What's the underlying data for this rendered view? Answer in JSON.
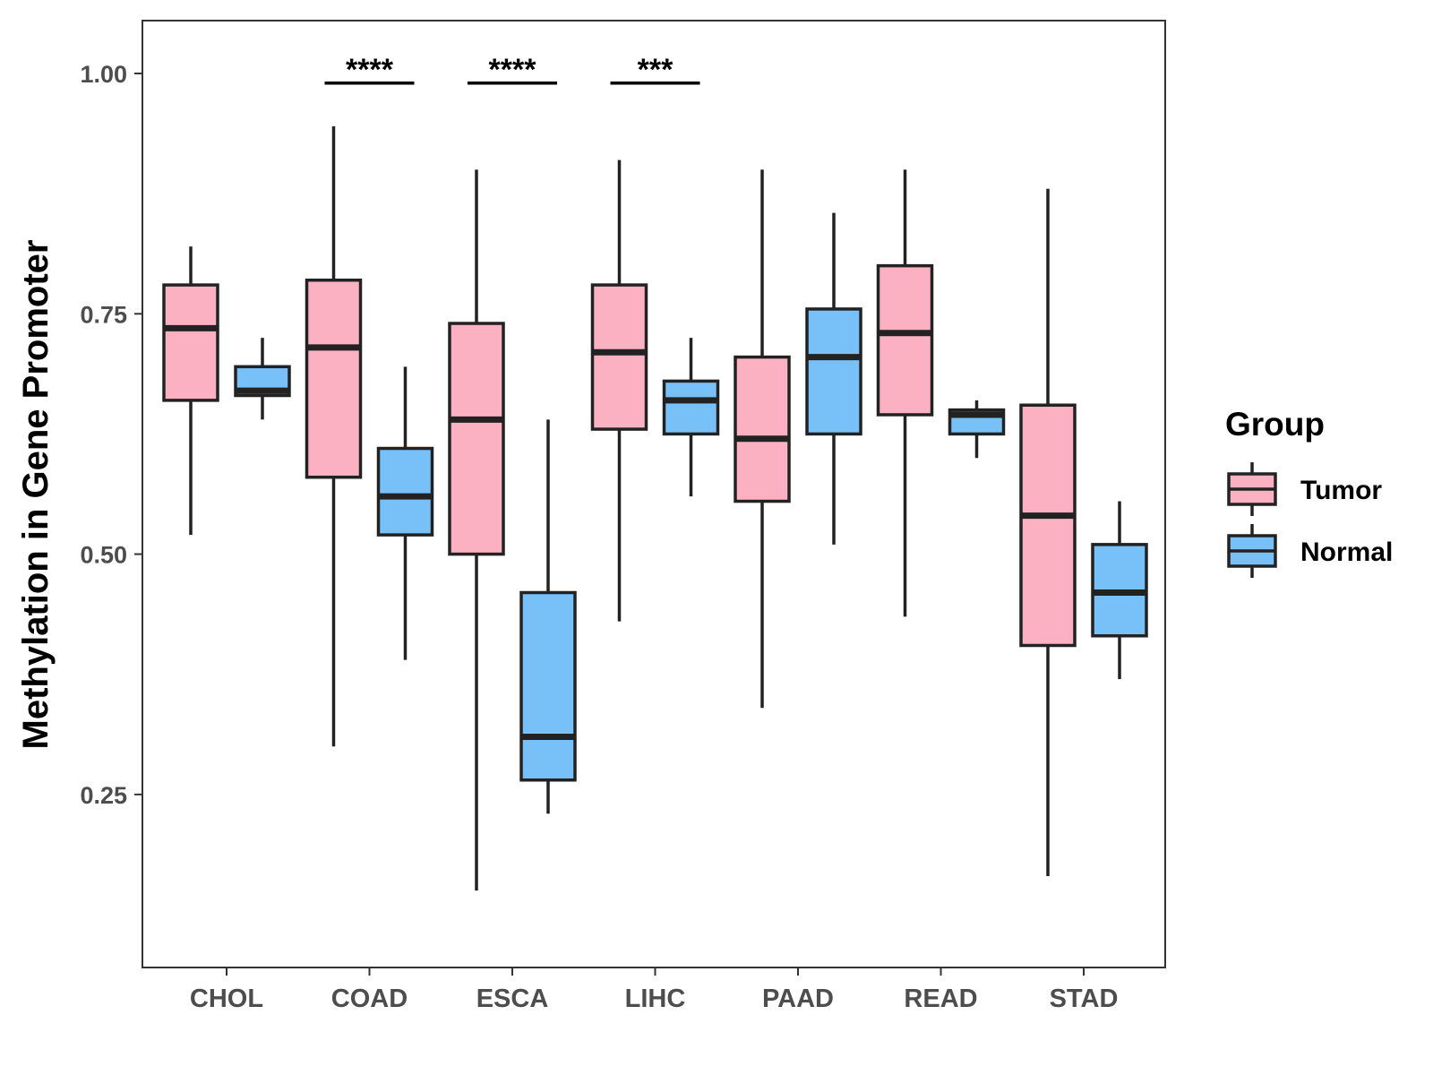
{
  "chart_data": {
    "type": "boxplot",
    "title": "",
    "xlabel": "",
    "ylabel": "Methylation in Gene Promoter",
    "ylim": [
      0.07,
      1.055
    ],
    "yticks": [
      0.25,
      0.5,
      0.75,
      1.0
    ],
    "ytick_labels": [
      "0.25",
      "0.50",
      "0.75",
      "1.00"
    ],
    "categories": [
      "CHOL",
      "COAD",
      "ESCA",
      "LIHC",
      "PAAD",
      "READ",
      "STAD"
    ],
    "grid": false,
    "legend": {
      "title": "Group",
      "position": "right",
      "entries": [
        {
          "name": "Tumor",
          "color": "#fbb1c2"
        },
        {
          "name": "Normal",
          "color": "#77c0f8"
        }
      ]
    },
    "series": [
      {
        "name": "Tumor",
        "color": "#fbb1c2",
        "boxes": [
          {
            "category": "CHOL",
            "whisker_low": 0.52,
            "q1": 0.66,
            "median": 0.735,
            "q3": 0.78,
            "whisker_high": 0.82
          },
          {
            "category": "COAD",
            "whisker_low": 0.3,
            "q1": 0.58,
            "median": 0.715,
            "q3": 0.785,
            "whisker_high": 0.945
          },
          {
            "category": "ESCA",
            "whisker_low": 0.15,
            "q1": 0.5,
            "median": 0.64,
            "q3": 0.74,
            "whisker_high": 0.9
          },
          {
            "category": "LIHC",
            "whisker_low": 0.43,
            "q1": 0.63,
            "median": 0.71,
            "q3": 0.78,
            "whisker_high": 0.91
          },
          {
            "category": "PAAD",
            "whisker_low": 0.34,
            "q1": 0.555,
            "median": 0.62,
            "q3": 0.705,
            "whisker_high": 0.9
          },
          {
            "category": "READ",
            "whisker_low": 0.435,
            "q1": 0.645,
            "median": 0.73,
            "q3": 0.8,
            "whisker_high": 0.9
          },
          {
            "category": "STAD",
            "whisker_low": 0.165,
            "q1": 0.405,
            "median": 0.54,
            "q3": 0.655,
            "whisker_high": 0.88
          }
        ]
      },
      {
        "name": "Normal",
        "color": "#77c0f8",
        "boxes": [
          {
            "category": "CHOL",
            "whisker_low": 0.64,
            "q1": 0.665,
            "median": 0.67,
            "q3": 0.695,
            "whisker_high": 0.725
          },
          {
            "category": "COAD",
            "whisker_low": 0.39,
            "q1": 0.52,
            "median": 0.56,
            "q3": 0.61,
            "whisker_high": 0.695
          },
          {
            "category": "ESCA",
            "whisker_low": 0.23,
            "q1": 0.265,
            "median": 0.31,
            "q3": 0.46,
            "whisker_high": 0.64
          },
          {
            "category": "LIHC",
            "whisker_low": 0.56,
            "q1": 0.625,
            "median": 0.66,
            "q3": 0.68,
            "whisker_high": 0.725
          },
          {
            "category": "PAAD",
            "whisker_low": 0.51,
            "q1": 0.625,
            "median": 0.705,
            "q3": 0.755,
            "whisker_high": 0.855
          },
          {
            "category": "READ",
            "whisker_low": 0.6,
            "q1": 0.625,
            "median": 0.645,
            "q3": 0.65,
            "whisker_high": 0.66
          },
          {
            "category": "STAD",
            "whisker_low": 0.37,
            "q1": 0.415,
            "median": 0.46,
            "q3": 0.51,
            "whisker_high": 0.555
          }
        ]
      }
    ],
    "annotations": [
      {
        "category": "COAD",
        "label": "****",
        "y": 0.99
      },
      {
        "category": "ESCA",
        "label": "****",
        "y": 0.99
      },
      {
        "category": "LIHC",
        "label": "***",
        "y": 0.99
      }
    ]
  }
}
